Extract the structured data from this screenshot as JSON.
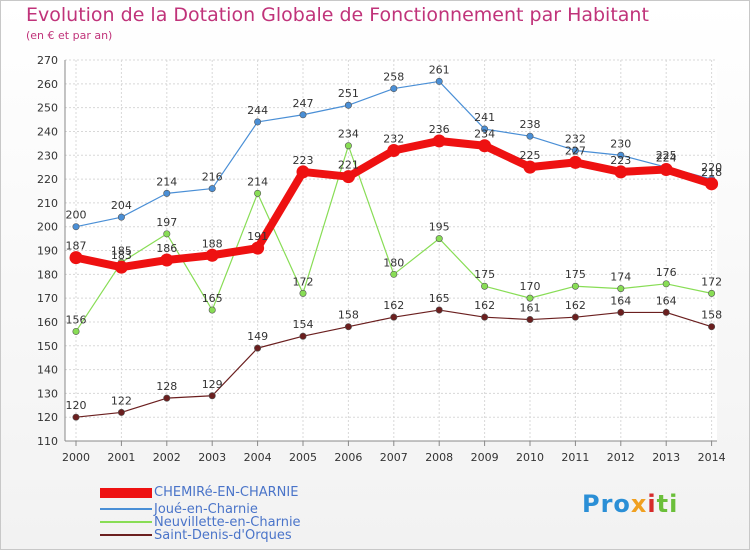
{
  "chart_data": {
    "type": "line",
    "title": "Evolution de la Dotation Globale de Fonctionnement par Habitant",
    "subtitle": "(en € et par an)",
    "x": [
      2000,
      2001,
      2002,
      2003,
      2004,
      2005,
      2006,
      2007,
      2008,
      2009,
      2010,
      2011,
      2012,
      2013,
      2014
    ],
    "ylim": [
      110,
      270
    ],
    "yticks": [
      110,
      120,
      130,
      140,
      150,
      160,
      170,
      180,
      190,
      200,
      210,
      220,
      230,
      240,
      250,
      260,
      270
    ],
    "grid": true,
    "legend_position": "bottom-left",
    "series": [
      {
        "name": "CHEMIRé-EN-CHARNIE",
        "color": "#ee1111",
        "values": [
          187,
          183,
          186,
          188,
          191,
          223,
          221,
          232,
          236,
          234,
          225,
          227,
          223,
          224,
          218
        ]
      },
      {
        "name": "Joué-en-Charnie",
        "color": "#4a8fd6",
        "values": [
          200,
          204,
          214,
          216,
          244,
          247,
          251,
          258,
          261,
          241,
          238,
          232,
          230,
          225,
          220
        ]
      },
      {
        "name": "Neuvillette-en-Charnie",
        "color": "#88dd55",
        "values": [
          156,
          185,
          197,
          165,
          214,
          172,
          234,
          180,
          195,
          175,
          170,
          175,
          174,
          176,
          172
        ]
      },
      {
        "name": "Saint-Denis-d'Orques",
        "color": "#6b1f1f",
        "values": [
          120,
          122,
          128,
          129,
          149,
          154,
          158,
          162,
          165,
          162,
          161,
          162,
          164,
          164,
          158
        ]
      }
    ]
  },
  "logo": {
    "part1": "Pro",
    "part2": "x",
    "part3": "i",
    "part4": "ti"
  }
}
